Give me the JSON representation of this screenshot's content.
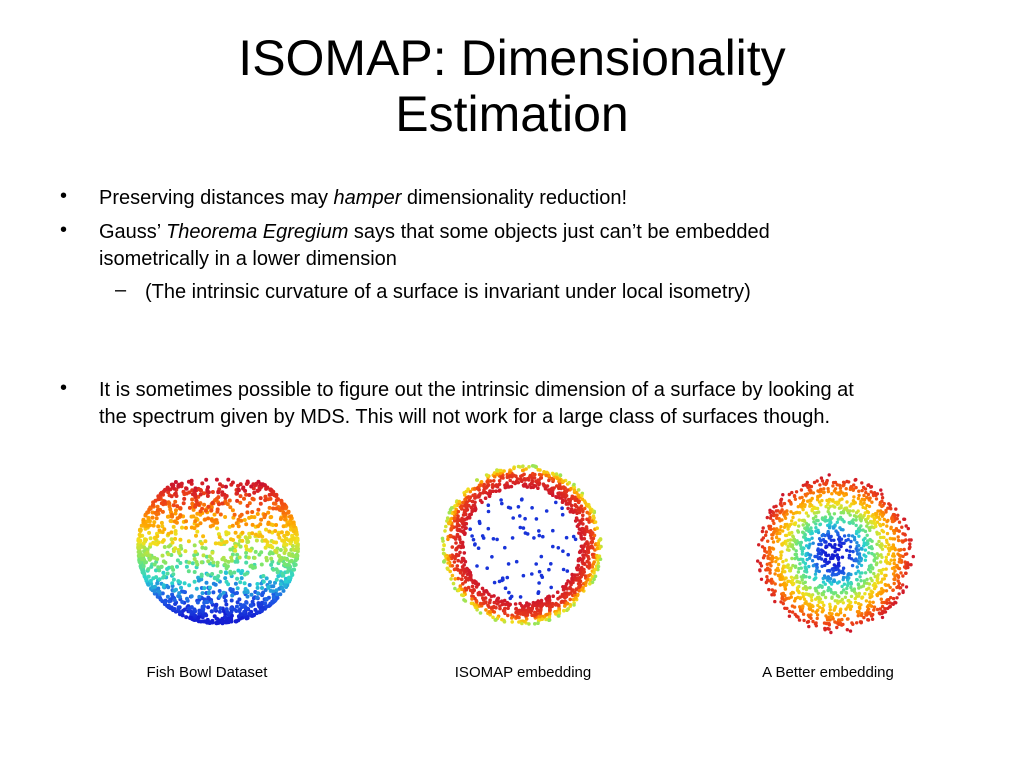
{
  "title_line1": "ISOMAP: Dimensionality",
  "title_line2": "Estimation",
  "bullets": {
    "b1_pre": "Preserving distances may ",
    "b1_em": "hamper",
    "b1_post": " dimensionality reduction!",
    "b2_pre": "Gauss’ ",
    "b2_em": "Theorema Egregium",
    "b2_post": " says that some objects just can’t be embedded",
    "b2_line2": "isometrically in a lower dimension",
    "sub1": "(The intrinsic curvature of a surface is invariant under local isometry)",
    "b3_line1": "It is sometimes possible to figure out the intrinsic dimension of a surface by looking at",
    "b3_line2": "the spectrum given by MDS.  This will not work for a large class of surfaces though."
  },
  "bullet_glyph": "•",
  "sub_glyph": "–",
  "figures": [
    {
      "caption": "Fish Bowl Dataset"
    },
    {
      "caption": "ISOMAP embedding"
    },
    {
      "caption": "A Better embedding"
    }
  ],
  "colors": {
    "red": "#c8102e",
    "orange": "#ff8c00",
    "yellow": "#f0e020",
    "cyan": "#30d8c8",
    "blue": "#1a2ad8"
  }
}
